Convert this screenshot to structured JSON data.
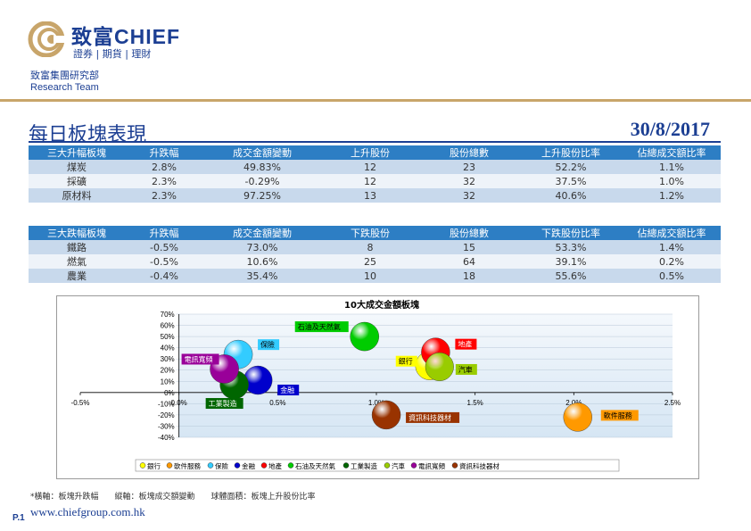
{
  "header": {
    "brand_cn": "致富",
    "brand_en": "CHIEF",
    "brand_sub": "證券 | 期貨 | 理財",
    "team_cn": "致富集團研究部",
    "team_en": "Research Team"
  },
  "page": {
    "title": "每日板塊表現",
    "date": "30/8/2017"
  },
  "colors": {
    "brand_blue": "#1c3f93",
    "gold": "#c8a56a",
    "header_blue": "#2d7ec4"
  },
  "table_up": {
    "headers": [
      "三大升幅板塊",
      "升跌幅",
      "成交金額變動",
      "上升股份",
      "股份總數",
      "上升股份比率",
      "佔總成交額比率"
    ],
    "rows": [
      [
        "煤炭",
        "2.8%",
        "49.83%",
        "12",
        "23",
        "52.2%",
        "1.1%"
      ],
      [
        "採礦",
        "2.3%",
        "-0.29%",
        "12",
        "32",
        "37.5%",
        "1.0%"
      ],
      [
        "原材料",
        "2.3%",
        "97.25%",
        "13",
        "32",
        "40.6%",
        "1.2%"
      ]
    ]
  },
  "table_down": {
    "headers": [
      "三大跌幅板塊",
      "升跌幅",
      "成交金額變動",
      "下跌股份",
      "股份總數",
      "下跌股份比率",
      "佔總成交額比率"
    ],
    "rows": [
      [
        "鐵路",
        "-0.5%",
        "73.0%",
        "8",
        "15",
        "53.3%",
        "1.4%"
      ],
      [
        "燃氣",
        "-0.5%",
        "10.6%",
        "25",
        "64",
        "39.1%",
        "0.2%"
      ],
      [
        "農業",
        "-0.4%",
        "35.4%",
        "10",
        "18",
        "55.6%",
        "0.5%"
      ]
    ]
  },
  "chart_data": {
    "type": "scatter",
    "title": "10大成交金額板塊",
    "xlabel": "",
    "ylabel": "",
    "xlim": [
      -0.005,
      0.025
    ],
    "ylim": [
      -0.4,
      0.7
    ],
    "x_ticks": [
      "-0.5%",
      "0.0%",
      "0.5%",
      "1.0%",
      "1.5%",
      "2.0%",
      "2.5%"
    ],
    "y_ticks": [
      "70%",
      "60%",
      "50%",
      "40%",
      "30%",
      "20%",
      "10%",
      "0%",
      "-10%",
      "-20%",
      "-30%",
      "-40%"
    ],
    "legend_position": "bottom",
    "series": [
      {
        "name": "銀行",
        "x": 0.0127,
        "y": 0.24,
        "size": 0.5,
        "color": "#ffff00"
      },
      {
        "name": "軟件服務",
        "x": 0.0202,
        "y": -0.22,
        "size": 0.5,
        "color": "#ff9900"
      },
      {
        "name": "保險",
        "x": 0.003,
        "y": 0.34,
        "size": 0.52,
        "color": "#33ccff"
      },
      {
        "name": "金融",
        "x": 0.004,
        "y": 0.11,
        "size": 0.5,
        "color": "#0000cc"
      },
      {
        "name": "地產",
        "x": 0.013,
        "y": 0.36,
        "size": 0.5,
        "color": "#ff0000"
      },
      {
        "name": "石油及天然氣",
        "x": 0.0094,
        "y": 0.5,
        "size": 0.52,
        "color": "#00cc00"
      },
      {
        "name": "工業製造",
        "x": 0.0028,
        "y": 0.07,
        "size": 0.5,
        "color": "#006600"
      },
      {
        "name": "汽車",
        "x": 0.0132,
        "y": 0.23,
        "size": 0.46,
        "color": "#99cc00"
      },
      {
        "name": "電訊寬頻",
        "x": 0.0023,
        "y": 0.21,
        "size": 0.52,
        "color": "#990099"
      },
      {
        "name": "資訊科技器材",
        "x": 0.0105,
        "y": -0.2,
        "size": 0.5,
        "color": "#993300"
      }
    ]
  },
  "footer": {
    "footnote": "*橫軸：板塊升跌幅　　縱軸：板塊成交額變動　　球體面積：板塊上升股份比率",
    "page": "P.1",
    "website": "www.chiefgroup.com.hk"
  }
}
